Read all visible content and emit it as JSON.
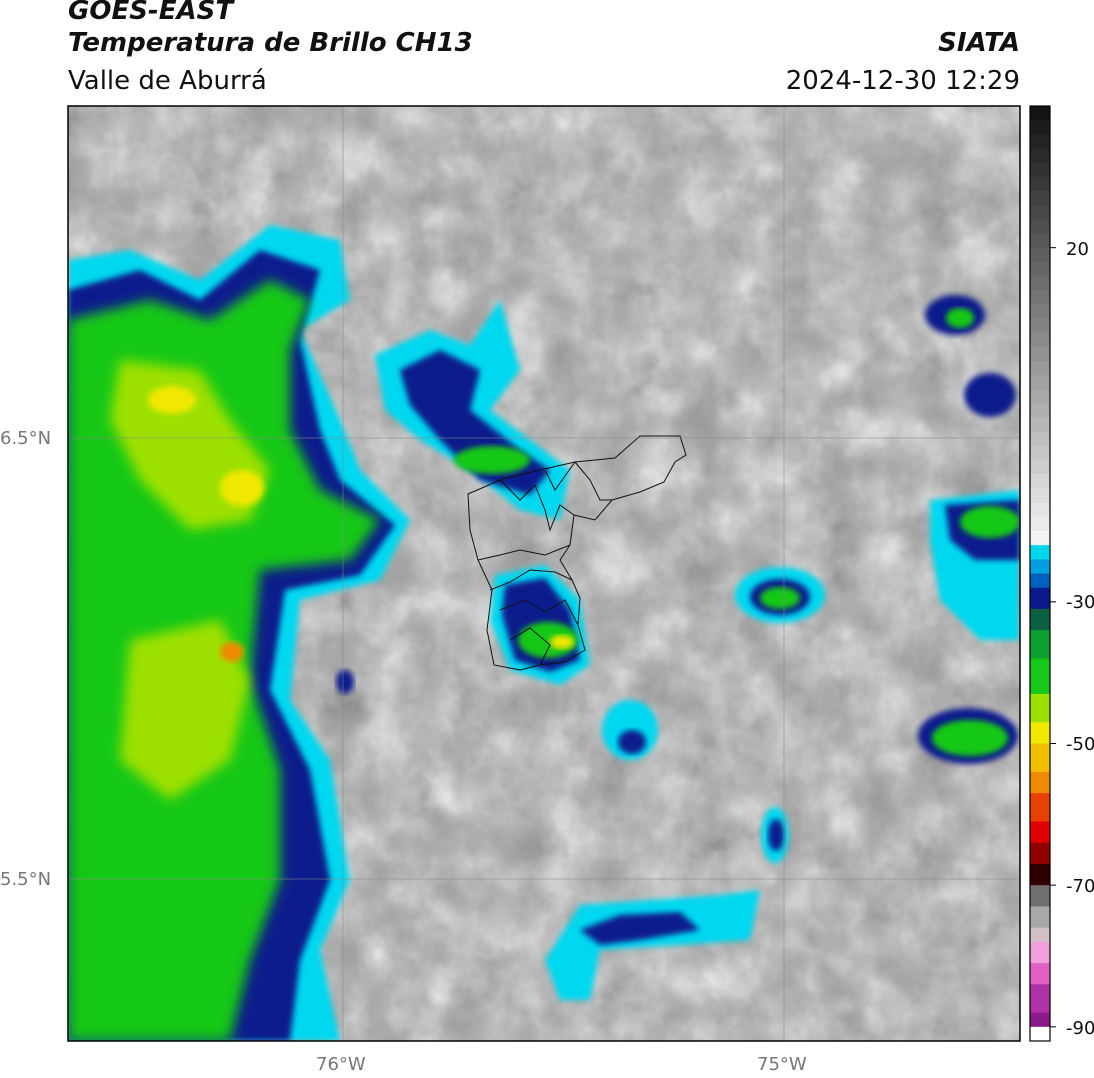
{
  "header": {
    "satellite": "GOES-EAST",
    "product": "Temperatura de Brillo CH13",
    "region": "Valle de Aburrá",
    "org": "SIATA",
    "datetime": "2024-12-30 12:29"
  },
  "map": {
    "lat_labels": [
      "6.5°N",
      "5.5°N"
    ],
    "lon_labels": [
      "76°W",
      "75°W"
    ],
    "extent": {
      "lon": [
        -76.62,
        -74.47
      ],
      "lat": [
        5.14,
        7.26
      ]
    },
    "gridlines": true
  },
  "colorbar": {
    "ticks": [
      "20",
      "-30",
      "-50",
      "-70",
      "-90"
    ],
    "tick_values": [
      20,
      -30,
      -50,
      -70,
      -90
    ],
    "range": [
      -92,
      40
    ],
    "colors": {
      "warm_gray": "#1a1a1a",
      "cold_cyan": "#00d8f0",
      "blue": "#0a1a8c",
      "green": "#18c818",
      "yellow": "#f0e800",
      "orange": "#f08a00",
      "red": "#e00000",
      "pink": "#e060c8",
      "purple": "#8a1a8a"
    }
  }
}
